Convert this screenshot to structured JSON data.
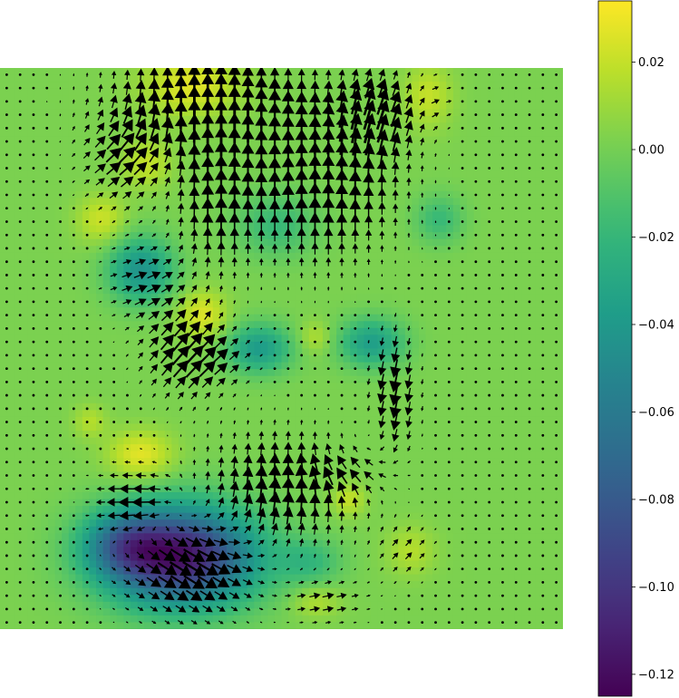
{
  "chart_data": {
    "type": "heatmap",
    "subtype": "quiver-over-field",
    "title": "",
    "xlabel": "",
    "ylabel": "",
    "axes_visible": false,
    "colormap": "viridis",
    "colormap_stops": [
      "#440154",
      "#482878",
      "#3e4989",
      "#31688e",
      "#26828e",
      "#1f9e89",
      "#35b779",
      "#6ece58",
      "#b5de2b",
      "#fde725"
    ],
    "grid_size": [
      42,
      42
    ],
    "background_value": 0.002,
    "scalar_field_blobs": [
      {
        "cx": 0.32,
        "cy": 0.87,
        "sx": 0.09,
        "sy": 0.06,
        "amp": -0.118
      },
      {
        "cx": 0.22,
        "cy": 0.85,
        "sx": 0.05,
        "sy": 0.04,
        "amp": -0.045
      },
      {
        "cx": 0.25,
        "cy": 0.36,
        "sx": 0.04,
        "sy": 0.04,
        "amp": -0.045
      },
      {
        "cx": 0.46,
        "cy": 0.5,
        "sx": 0.04,
        "sy": 0.03,
        "amp": -0.04
      },
      {
        "cx": 0.66,
        "cy": 0.49,
        "sx": 0.04,
        "sy": 0.03,
        "amp": -0.038
      },
      {
        "cx": 0.49,
        "cy": 0.28,
        "sx": 0.05,
        "sy": 0.04,
        "amp": -0.02
      },
      {
        "cx": 0.78,
        "cy": 0.27,
        "sx": 0.03,
        "sy": 0.03,
        "amp": -0.02
      },
      {
        "cx": 0.55,
        "cy": 0.88,
        "sx": 0.04,
        "sy": 0.03,
        "amp": -0.02
      },
      {
        "cx": 0.34,
        "cy": 0.03,
        "sx": 0.06,
        "sy": 0.04,
        "amp": 0.025
      },
      {
        "cx": 0.76,
        "cy": 0.05,
        "sx": 0.03,
        "sy": 0.04,
        "amp": 0.018
      },
      {
        "cx": 0.18,
        "cy": 0.27,
        "sx": 0.03,
        "sy": 0.03,
        "amp": 0.02
      },
      {
        "cx": 0.26,
        "cy": 0.17,
        "sx": 0.03,
        "sy": 0.03,
        "amp": 0.018
      },
      {
        "cx": 0.36,
        "cy": 0.44,
        "sx": 0.03,
        "sy": 0.03,
        "amp": 0.024
      },
      {
        "cx": 0.25,
        "cy": 0.69,
        "sx": 0.04,
        "sy": 0.03,
        "amp": 0.026
      },
      {
        "cx": 0.62,
        "cy": 0.77,
        "sx": 0.02,
        "sy": 0.02,
        "amp": 0.018
      },
      {
        "cx": 0.56,
        "cy": 0.48,
        "sx": 0.02,
        "sy": 0.02,
        "amp": 0.014
      },
      {
        "cx": 0.56,
        "cy": 0.95,
        "sx": 0.03,
        "sy": 0.02,
        "amp": 0.014
      },
      {
        "cx": 0.73,
        "cy": 0.86,
        "sx": 0.03,
        "sy": 0.03,
        "amp": 0.014
      },
      {
        "cx": 0.16,
        "cy": 0.63,
        "sx": 0.02,
        "sy": 0.02,
        "amp": 0.014
      }
    ],
    "vector_field_regions": [
      {
        "cx": 0.37,
        "cy": 0.06,
        "sx": 0.12,
        "sy": 0.06,
        "u": 0.0,
        "v": 1.0,
        "amp": 1.0
      },
      {
        "cx": 0.57,
        "cy": 0.2,
        "sx": 0.1,
        "sy": 0.1,
        "u": 0.0,
        "v": 1.0,
        "amp": 0.95
      },
      {
        "cx": 0.67,
        "cy": 0.08,
        "sx": 0.05,
        "sy": 0.05,
        "u": 0.4,
        "v": 0.9,
        "amp": 0.9
      },
      {
        "cx": 0.38,
        "cy": 0.22,
        "sx": 0.05,
        "sy": 0.1,
        "u": 0.0,
        "v": 1.0,
        "amp": 0.7
      },
      {
        "cx": 0.22,
        "cy": 0.16,
        "sx": 0.05,
        "sy": 0.06,
        "u": 0.8,
        "v": 0.6,
        "amp": 0.75
      },
      {
        "cx": 0.26,
        "cy": 0.38,
        "sx": 0.05,
        "sy": 0.05,
        "u": 0.9,
        "v": 0.3,
        "amp": 0.55
      },
      {
        "cx": 0.32,
        "cy": 0.5,
        "sx": 0.05,
        "sy": 0.06,
        "u": 0.6,
        "v": 0.8,
        "amp": 0.7
      },
      {
        "cx": 0.38,
        "cy": 0.52,
        "sx": 0.05,
        "sy": 0.04,
        "u": 0.8,
        "v": 0.6,
        "amp": 0.5
      },
      {
        "cx": 0.7,
        "cy": 0.58,
        "sx": 0.03,
        "sy": 0.08,
        "u": -0.2,
        "v": -1.0,
        "amp": 0.8
      },
      {
        "cx": 0.62,
        "cy": 0.72,
        "sx": 0.06,
        "sy": 0.03,
        "u": -0.9,
        "v": 0.3,
        "amp": 0.5
      },
      {
        "cx": 0.24,
        "cy": 0.78,
        "sx": 0.05,
        "sy": 0.05,
        "u": -1.0,
        "v": 0.0,
        "amp": 0.75
      },
      {
        "cx": 0.5,
        "cy": 0.75,
        "sx": 0.1,
        "sy": 0.07,
        "u": 0.1,
        "v": 1.0,
        "amp": 0.85
      },
      {
        "cx": 0.34,
        "cy": 0.89,
        "sx": 0.08,
        "sy": 0.06,
        "u": 0.85,
        "v": -0.55,
        "amp": 1.0
      },
      {
        "cx": 0.58,
        "cy": 0.95,
        "sx": 0.05,
        "sy": 0.03,
        "u": 1.0,
        "v": 0.2,
        "amp": 0.45
      },
      {
        "cx": 0.72,
        "cy": 0.86,
        "sx": 0.04,
        "sy": 0.04,
        "u": 0.7,
        "v": 0.7,
        "amp": 0.35
      },
      {
        "cx": 0.78,
        "cy": 0.06,
        "sx": 0.02,
        "sy": 0.04,
        "u": 0.9,
        "v": 0.0,
        "amp": 0.3
      }
    ],
    "colorbar": {
      "vmin": -0.125,
      "vmax": 0.034,
      "ticks": [
        0.02,
        0.0,
        -0.02,
        -0.04,
        -0.06,
        -0.08,
        -0.1,
        -0.12
      ],
      "tick_labels": [
        "0.02",
        "0.00",
        "−0.02",
        "−0.04",
        "−0.06",
        "−0.08",
        "−0.10",
        "−0.12"
      ]
    }
  }
}
